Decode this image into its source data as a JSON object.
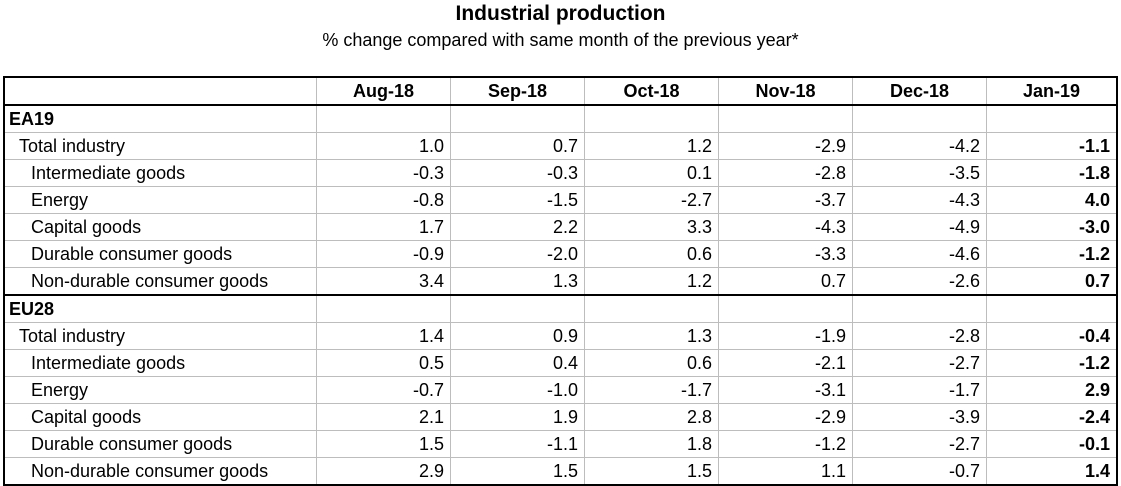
{
  "title": "Industrial production",
  "subtitle": "% change compared with same month of the previous year*",
  "table": {
    "columns": [
      "Aug-18",
      "Sep-18",
      "Oct-18",
      "Nov-18",
      "Dec-18",
      "Jan-19"
    ],
    "groups": [
      {
        "name": "EA19",
        "rows": [
          {
            "label": "Total industry",
            "level": 0,
            "values": [
              "1.0",
              "0.7",
              "1.2",
              "-2.9",
              "-4.2",
              "-1.1"
            ]
          },
          {
            "label": "Intermediate goods",
            "level": 1,
            "values": [
              "-0.3",
              "-0.3",
              "0.1",
              "-2.8",
              "-3.5",
              "-1.8"
            ]
          },
          {
            "label": "Energy",
            "level": 1,
            "values": [
              "-0.8",
              "-1.5",
              "-2.7",
              "-3.7",
              "-4.3",
              "4.0"
            ]
          },
          {
            "label": "Capital goods",
            "level": 1,
            "values": [
              "1.7",
              "2.2",
              "3.3",
              "-4.3",
              "-4.9",
              "-3.0"
            ]
          },
          {
            "label": "Durable consumer goods",
            "level": 1,
            "values": [
              "-0.9",
              "-2.0",
              "0.6",
              "-3.3",
              "-4.6",
              "-1.2"
            ]
          },
          {
            "label": "Non-durable consumer goods",
            "level": 1,
            "values": [
              "3.4",
              "1.3",
              "1.2",
              "0.7",
              "-2.6",
              "0.7"
            ]
          }
        ]
      },
      {
        "name": "EU28",
        "rows": [
          {
            "label": "Total industry",
            "level": 0,
            "values": [
              "1.4",
              "0.9",
              "1.3",
              "-1.9",
              "-2.8",
              "-0.4"
            ]
          },
          {
            "label": "Intermediate goods",
            "level": 1,
            "values": [
              "0.5",
              "0.4",
              "0.6",
              "-2.1",
              "-2.7",
              "-1.2"
            ]
          },
          {
            "label": "Energy",
            "level": 1,
            "values": [
              "-0.7",
              "-1.0",
              "-1.7",
              "-3.1",
              "-1.7",
              "2.9"
            ]
          },
          {
            "label": "Capital goods",
            "level": 1,
            "values": [
              "2.1",
              "1.9",
              "2.8",
              "-2.9",
              "-3.9",
              "-2.4"
            ]
          },
          {
            "label": "Durable consumer goods",
            "level": 1,
            "values": [
              "1.5",
              "-1.1",
              "1.8",
              "-1.2",
              "-2.7",
              "-0.1"
            ]
          },
          {
            "label": "Non-durable consumer goods",
            "level": 1,
            "values": [
              "2.9",
              "1.5",
              "1.5",
              "1.1",
              "-0.7",
              "1.4"
            ]
          }
        ]
      }
    ]
  }
}
